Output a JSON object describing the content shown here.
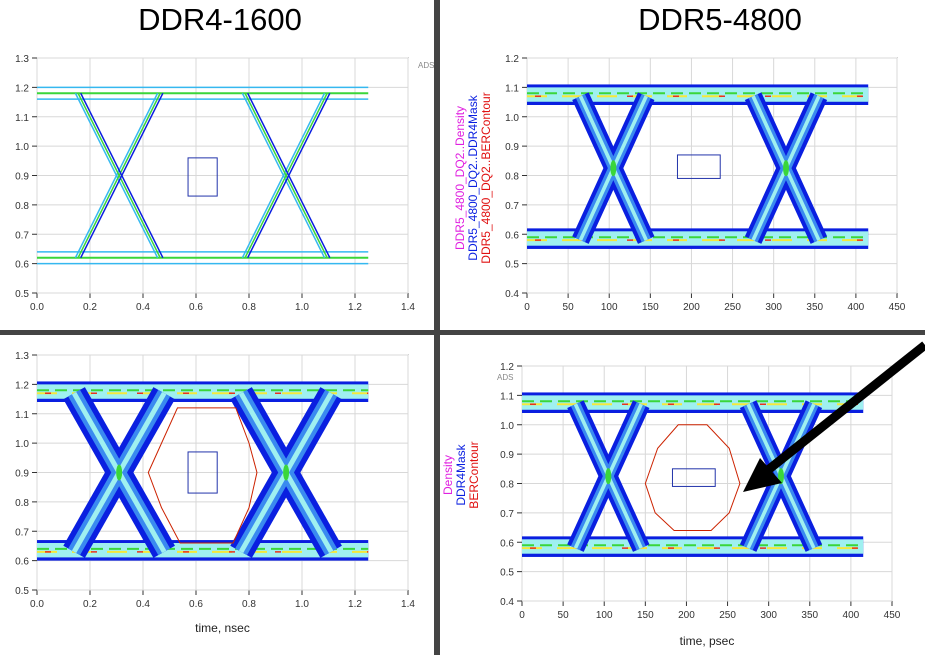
{
  "titles": {
    "left": "DDR4-1600",
    "right": "DDR5-4800"
  },
  "ads_label": "ADS",
  "colors": {
    "dense_blue": "#0a1fe0",
    "mid": "#35b8f0",
    "cyan": "#9ff0f0",
    "green": "#3ad63a",
    "yellow": "#f5e83a",
    "red": "#e8321e",
    "mask": "#2233aa",
    "contour": "#cc2200",
    "divider": "#444444"
  },
  "chart_data": [
    {
      "type": "eye",
      "id": "ddr4-top",
      "style": "thin",
      "xlabel": "",
      "ylabel": "",
      "xlim": [
        0,
        1.4
      ],
      "ylim": [
        0.5,
        1.3
      ],
      "xticks": [
        "0.0",
        "0.2",
        "0.4",
        "0.6",
        "0.8",
        "1.0",
        "1.2",
        "1.4"
      ],
      "yticks": [
        "0.5",
        "0.6",
        "0.7",
        "0.8",
        "0.9",
        "1.0",
        "1.1",
        "1.2",
        "1.3"
      ],
      "data_range": [
        0,
        1.25
      ],
      "high": 1.18,
      "low": 0.62,
      "crossings": [
        0.31,
        0.94
      ],
      "transition_half_width": 0.155,
      "mask": {
        "t": [
          0.57,
          0.68
        ],
        "v": [
          0.83,
          0.96
        ]
      },
      "legend": []
    },
    {
      "type": "eye",
      "id": "ddr5-top",
      "style": "dense",
      "xlabel": "",
      "ylabel": "",
      "xlim": [
        0,
        450
      ],
      "ylim": [
        0.4,
        1.2
      ],
      "xticks": [
        "0",
        "50",
        "100",
        "150",
        "200",
        "250",
        "300",
        "350",
        "400",
        "450"
      ],
      "yticks": [
        "0.4",
        "0.5",
        "0.6",
        "0.7",
        "0.8",
        "0.9",
        "1.0",
        "1.1",
        "1.2"
      ],
      "data_range": [
        0,
        415
      ],
      "high": 1.07,
      "low": 0.58,
      "crossings": [
        105,
        315
      ],
      "transition_half_width": 40,
      "mask": {
        "t": [
          183,
          235
        ],
        "v": [
          0.79,
          0.87
        ]
      },
      "legend": [
        "DDR5_4800_DQ2..Density",
        "DDR5_4800_DQ2..DDR4Mask",
        "DDR5_4800_DQ2..BERContour"
      ]
    },
    {
      "type": "eye",
      "id": "ddr4-bottom",
      "style": "dense",
      "xlabel": "time, nsec",
      "ylabel": "",
      "xlim": [
        0,
        1.4
      ],
      "ylim": [
        0.5,
        1.3
      ],
      "xticks": [
        "0.0",
        "0.2",
        "0.4",
        "0.6",
        "0.8",
        "1.0",
        "1.2",
        "1.4"
      ],
      "yticks": [
        "0.5",
        "0.6",
        "0.7",
        "0.8",
        "0.9",
        "1.0",
        "1.1",
        "1.2",
        "1.3"
      ],
      "data_range": [
        0,
        1.25
      ],
      "high": 1.17,
      "low": 0.63,
      "crossings": [
        0.31,
        0.94
      ],
      "transition_half_width": 0.17,
      "mask": {
        "t": [
          0.57,
          0.68
        ],
        "v": [
          0.83,
          0.97
        ]
      },
      "contour": [
        [
          0.42,
          0.9
        ],
        [
          0.47,
          1.0
        ],
        [
          0.53,
          1.12
        ],
        [
          0.75,
          1.12
        ],
        [
          0.8,
          1.0
        ],
        [
          0.83,
          0.9
        ],
        [
          0.8,
          0.78
        ],
        [
          0.74,
          0.66
        ],
        [
          0.54,
          0.66
        ],
        [
          0.47,
          0.78
        ]
      ],
      "legend": []
    },
    {
      "type": "eye",
      "id": "ddr5-bottom",
      "style": "dense",
      "xlabel": "time, psec",
      "ylabel": "",
      "xlim": [
        0,
        450
      ],
      "ylim": [
        0.4,
        1.2
      ],
      "xticks": [
        "0",
        "50",
        "100",
        "150",
        "200",
        "250",
        "300",
        "350",
        "400",
        "450"
      ],
      "yticks": [
        "0.4",
        "0.5",
        "0.6",
        "0.7",
        "0.8",
        "0.9",
        "1.0",
        "1.1",
        "1.2"
      ],
      "data_range": [
        0,
        415
      ],
      "high": 1.07,
      "low": 0.58,
      "crossings": [
        105,
        315
      ],
      "transition_half_width": 40,
      "mask": {
        "t": [
          183,
          235
        ],
        "v": [
          0.79,
          0.85
        ]
      },
      "contour": [
        [
          150,
          0.8
        ],
        [
          165,
          0.92
        ],
        [
          190,
          1.0
        ],
        [
          225,
          1.0
        ],
        [
          252,
          0.92
        ],
        [
          265,
          0.8
        ],
        [
          252,
          0.7
        ],
        [
          230,
          0.64
        ],
        [
          185,
          0.64
        ],
        [
          162,
          0.7
        ]
      ],
      "legend": [
        "Density",
        "DDR4Mask",
        "BERContour"
      ]
    }
  ]
}
